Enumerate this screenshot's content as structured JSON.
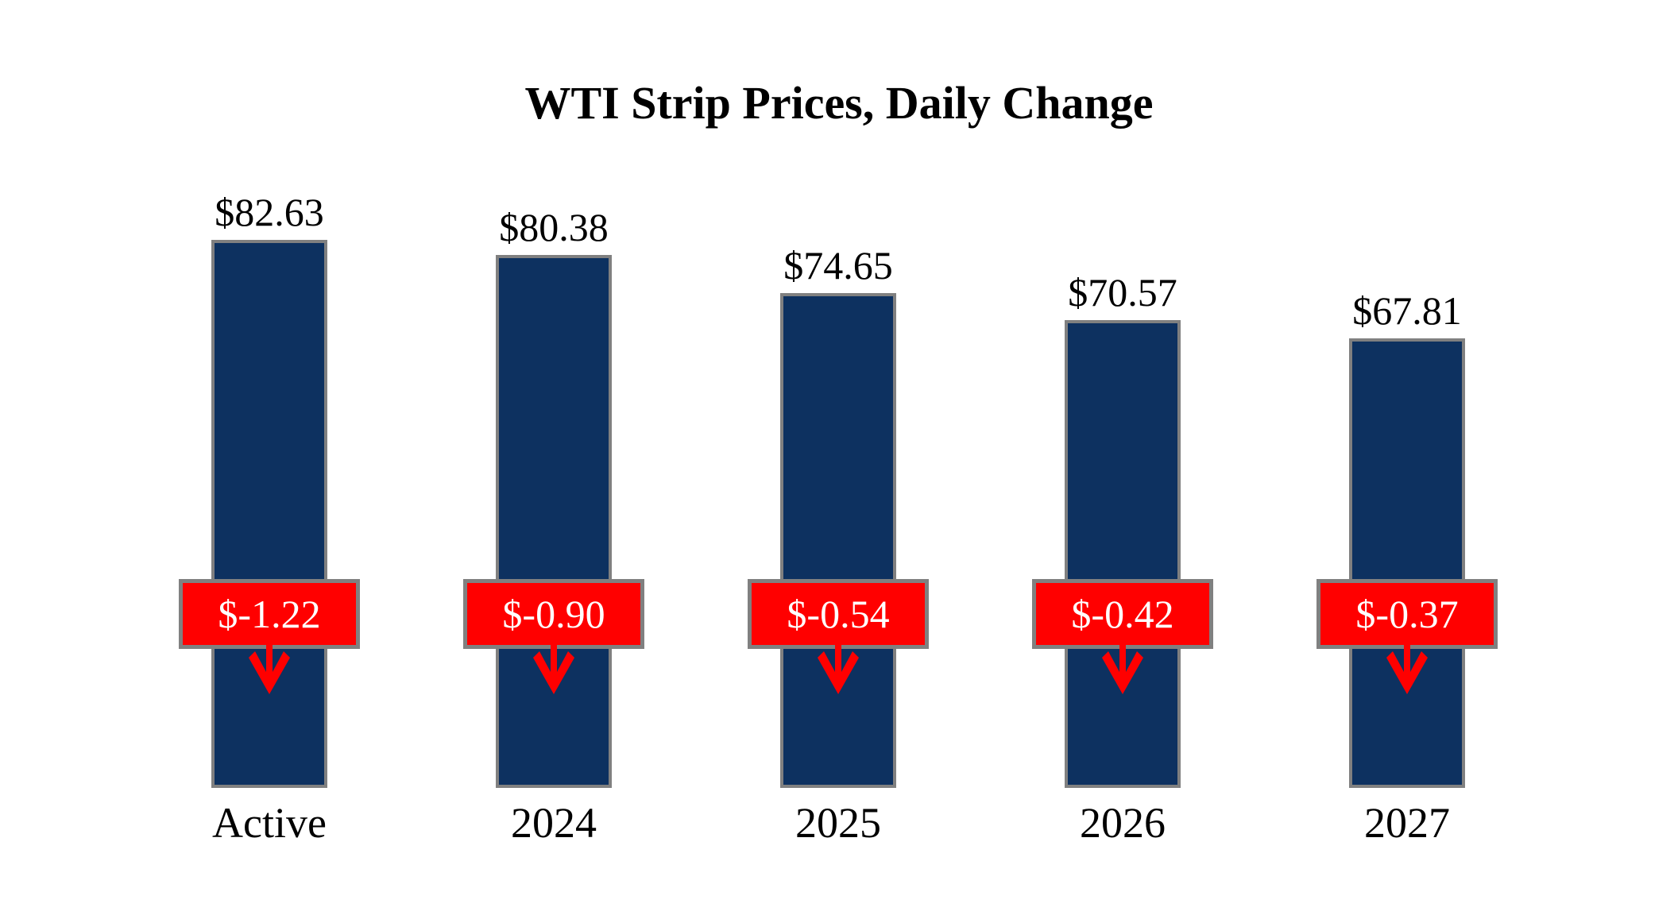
{
  "title": "WTI Strip Prices, Daily Change",
  "chart_data": {
    "type": "bar",
    "title": "WTI Strip Prices, Daily Change",
    "categories": [
      "Active",
      "2024",
      "2025",
      "2026",
      "2027"
    ],
    "series": [
      {
        "name": "WTI Strip Price",
        "values": [
          82.63,
          80.38,
          74.65,
          70.57,
          67.81
        ]
      },
      {
        "name": "Daily Change",
        "values": [
          -1.22,
          -0.9,
          -0.54,
          -0.42,
          -0.37
        ]
      }
    ],
    "value_labels": [
      "$82.63",
      "$80.38",
      "$74.65",
      "$70.57",
      "$67.81"
    ],
    "change_labels": [
      "$-1.22",
      "$-0.90",
      "$-0.54",
      "$-0.42",
      "$-0.37"
    ],
    "xlabel": "",
    "ylabel": "",
    "ylim": [
      0,
      85
    ],
    "grid": false,
    "legend_position": "none",
    "annotations": "red down-arrow below each daily-change badge",
    "colors": {
      "bar_fill": "#0D3160",
      "bar_border": "#808080",
      "badge_fill": "#FF0000",
      "badge_border": "#808080",
      "badge_text": "#FFFFFF",
      "arrow": "#FF0000",
      "label_text": "#000000",
      "background": "#FFFFFF"
    }
  }
}
